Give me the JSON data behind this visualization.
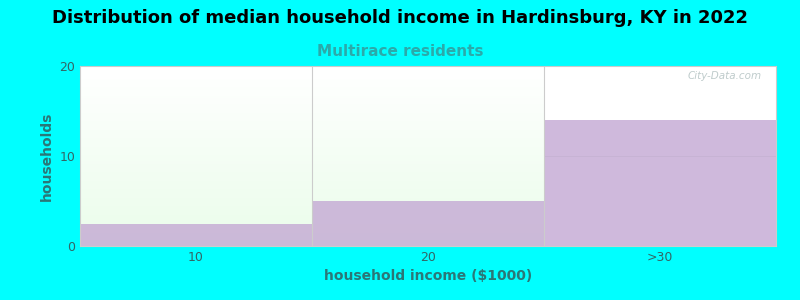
{
  "title": "Distribution of median household income in Hardinsburg, KY in 2022",
  "subtitle": "Multirace residents",
  "xlabel": "household income ($1000)",
  "ylabel": "households",
  "categories": [
    "10",
    "20",
    ">30"
  ],
  "values": [
    2.5,
    5.0,
    14.0
  ],
  "ylim": [
    0,
    20
  ],
  "yticks": [
    0,
    10,
    20
  ],
  "background_color": "#00FFFF",
  "plot_bg_color": "#FFFFFF",
  "bar_color": "#C4A8D4",
  "bar_alpha": 0.8,
  "title_fontsize": 13,
  "subtitle_fontsize": 11,
  "subtitle_color": "#2BAAAA",
  "axis_label_color": "#2B7777",
  "axis_label_fontsize": 10,
  "tick_fontsize": 9,
  "tick_color": "#336666",
  "watermark": "City-Data.com",
  "green_bars": [
    0,
    1
  ],
  "grid_color": "#CCDDCC",
  "spine_color": "#CCCCCC"
}
